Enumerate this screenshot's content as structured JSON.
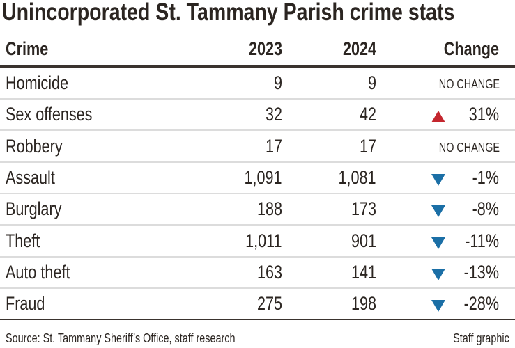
{
  "chart_data": {
    "type": "table",
    "title": "Unincorporated St. Tammany Parish crime stats",
    "columns": [
      "Crime",
      "2023",
      "2024",
      "Change"
    ],
    "rows": [
      {
        "crime": "Homicide",
        "y2023": "9",
        "y2024": "9",
        "direction": "none",
        "change": "NO CHANGE"
      },
      {
        "crime": "Sex offenses",
        "y2023": "32",
        "y2024": "42",
        "direction": "up",
        "change": "31%"
      },
      {
        "crime": "Robbery",
        "y2023": "17",
        "y2024": "17",
        "direction": "none",
        "change": "NO CHANGE"
      },
      {
        "crime": "Assault",
        "y2023": "1,091",
        "y2024": "1,081",
        "direction": "down",
        "change": "-1%"
      },
      {
        "crime": "Burglary",
        "y2023": "188",
        "y2024": "173",
        "direction": "down",
        "change": "-8%"
      },
      {
        "crime": "Theft",
        "y2023": "1,011",
        "y2024": "901",
        "direction": "down",
        "change": "-11%"
      },
      {
        "crime": "Auto theft",
        "y2023": "163",
        "y2024": "141",
        "direction": "down",
        "change": "-13%"
      },
      {
        "crime": "Fraud",
        "y2023": "275",
        "y2024": "198",
        "direction": "down",
        "change": "-28%"
      }
    ],
    "colors": {
      "up": "#c4262e",
      "down": "#1b6fa6",
      "text": "#2b2521"
    },
    "source": "Source: St. Tammany Sheriff’s Office, staff research",
    "credit": "Staff graphic"
  }
}
